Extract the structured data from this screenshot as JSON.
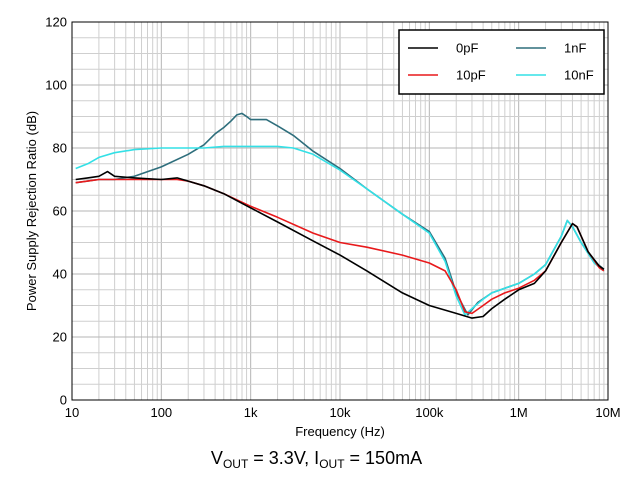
{
  "chart_data": {
    "type": "line",
    "xlabel": "Frequency (Hz)",
    "ylabel": "Power Supply Rejection Ratio (dB)",
    "xscale": "log",
    "xlim": [
      10,
      10000000
    ],
    "ylim": [
      0,
      120
    ],
    "grid": true,
    "legend_position": "top-right",
    "x_ticks": [
      {
        "value": 10,
        "label": "10"
      },
      {
        "value": 100,
        "label": "100"
      },
      {
        "value": 1000,
        "label": "1k"
      },
      {
        "value": 10000,
        "label": "10k"
      },
      {
        "value": 100000,
        "label": "100k"
      },
      {
        "value": 1000000,
        "label": "1M"
      },
      {
        "value": 10000000,
        "label": "10M"
      }
    ],
    "y_ticks": [
      {
        "value": 0,
        "label": "0"
      },
      {
        "value": 20,
        "label": "20"
      },
      {
        "value": 40,
        "label": "40"
      },
      {
        "value": 60,
        "label": "60"
      },
      {
        "value": 80,
        "label": "80"
      },
      {
        "value": 100,
        "label": "100"
      },
      {
        "value": 120,
        "label": "120"
      }
    ],
    "series": [
      {
        "name": "0pF",
        "color": "#000000",
        "points": [
          [
            11,
            70
          ],
          [
            15,
            70.5
          ],
          [
            20,
            71
          ],
          [
            25,
            72.5
          ],
          [
            30,
            71
          ],
          [
            50,
            70.5
          ],
          [
            100,
            70
          ],
          [
            150,
            70.5
          ],
          [
            200,
            69.5
          ],
          [
            300,
            68
          ],
          [
            500,
            65.5
          ],
          [
            1000,
            61
          ],
          [
            2000,
            56.5
          ],
          [
            5000,
            50.5
          ],
          [
            10000,
            46
          ],
          [
            20000,
            41
          ],
          [
            50000,
            34
          ],
          [
            100000,
            30
          ],
          [
            200000,
            27.5
          ],
          [
            300000,
            26
          ],
          [
            400000,
            26.5
          ],
          [
            500000,
            29
          ],
          [
            700000,
            32
          ],
          [
            1000000,
            35
          ],
          [
            1500000,
            37
          ],
          [
            2000000,
            41
          ],
          [
            3000000,
            50
          ],
          [
            4000000,
            56
          ],
          [
            4500000,
            55
          ],
          [
            6000000,
            47
          ],
          [
            8000000,
            42.5
          ],
          [
            9000000,
            41.5
          ]
        ]
      },
      {
        "name": "10pF",
        "color": "#e8191b",
        "points": [
          [
            11,
            69
          ],
          [
            15,
            69.5
          ],
          [
            20,
            70
          ],
          [
            30,
            70
          ],
          [
            50,
            70
          ],
          [
            100,
            70
          ],
          [
            150,
            70
          ],
          [
            200,
            69.5
          ],
          [
            300,
            68
          ],
          [
            500,
            65.5
          ],
          [
            1000,
            61.5
          ],
          [
            2000,
            58
          ],
          [
            5000,
            53
          ],
          [
            10000,
            50
          ],
          [
            20000,
            48.5
          ],
          [
            50000,
            46
          ],
          [
            100000,
            43.5
          ],
          [
            150000,
            41
          ],
          [
            200000,
            35
          ],
          [
            250000,
            28
          ],
          [
            300000,
            27.5
          ],
          [
            400000,
            30
          ],
          [
            500000,
            32
          ],
          [
            700000,
            34
          ],
          [
            1000000,
            35.5
          ],
          [
            1500000,
            38
          ],
          [
            2000000,
            41
          ],
          [
            3000000,
            50
          ],
          [
            4000000,
            56
          ],
          [
            4500000,
            55
          ],
          [
            6000000,
            47
          ],
          [
            8000000,
            42
          ],
          [
            9000000,
            41
          ]
        ]
      },
      {
        "name": "1nF",
        "color": "#2e6e7c",
        "points": [
          [
            11,
            69
          ],
          [
            20,
            70
          ],
          [
            30,
            70
          ],
          [
            50,
            71
          ],
          [
            100,
            74
          ],
          [
            200,
            78
          ],
          [
            300,
            81
          ],
          [
            400,
            84.5
          ],
          [
            500,
            86.5
          ],
          [
            600,
            88.5
          ],
          [
            700,
            90.5
          ],
          [
            800,
            91
          ],
          [
            900,
            90
          ],
          [
            1000,
            89
          ],
          [
            1500,
            89
          ],
          [
            2000,
            87
          ],
          [
            3000,
            84
          ],
          [
            5000,
            79
          ],
          [
            10000,
            73.5
          ],
          [
            20000,
            67
          ],
          [
            50000,
            59
          ],
          [
            100000,
            53.5
          ],
          [
            150000,
            45
          ],
          [
            200000,
            34
          ],
          [
            270000,
            27
          ],
          [
            350000,
            31
          ],
          [
            500000,
            34
          ],
          [
            700000,
            35.5
          ],
          [
            1000000,
            37
          ],
          [
            1500000,
            40
          ],
          [
            2000000,
            43
          ],
          [
            3000000,
            52
          ],
          [
            3500000,
            57
          ],
          [
            4000000,
            55
          ],
          [
            5000000,
            50
          ],
          [
            7000000,
            44
          ],
          [
            9000000,
            41.5
          ]
        ]
      },
      {
        "name": "10nF",
        "color": "#33e0e6",
        "points": [
          [
            11,
            73.5
          ],
          [
            15,
            75
          ],
          [
            20,
            77
          ],
          [
            30,
            78.5
          ],
          [
            50,
            79.5
          ],
          [
            100,
            80
          ],
          [
            200,
            80
          ],
          [
            300,
            80
          ],
          [
            500,
            80.5
          ],
          [
            700,
            80.5
          ],
          [
            1000,
            80.5
          ],
          [
            2000,
            80.5
          ],
          [
            3000,
            80
          ],
          [
            5000,
            78
          ],
          [
            10000,
            73
          ],
          [
            20000,
            67
          ],
          [
            50000,
            59
          ],
          [
            100000,
            53
          ],
          [
            150000,
            44
          ],
          [
            200000,
            33
          ],
          [
            250000,
            27
          ],
          [
            300000,
            29
          ],
          [
            400000,
            32
          ],
          [
            500000,
            34
          ],
          [
            700000,
            35.5
          ],
          [
            1000000,
            37
          ],
          [
            1500000,
            40
          ],
          [
            2000000,
            43
          ],
          [
            3000000,
            52
          ],
          [
            3500000,
            57
          ],
          [
            4000000,
            55
          ],
          [
            5000000,
            50
          ],
          [
            7000000,
            43.5
          ],
          [
            9000000,
            41
          ]
        ]
      }
    ]
  },
  "caption": {
    "v_label": "V",
    "v_sub": "OUT",
    "v_val": " = 3.3V, I",
    "i_sub": "OUT",
    "i_val": " = 150mA"
  }
}
